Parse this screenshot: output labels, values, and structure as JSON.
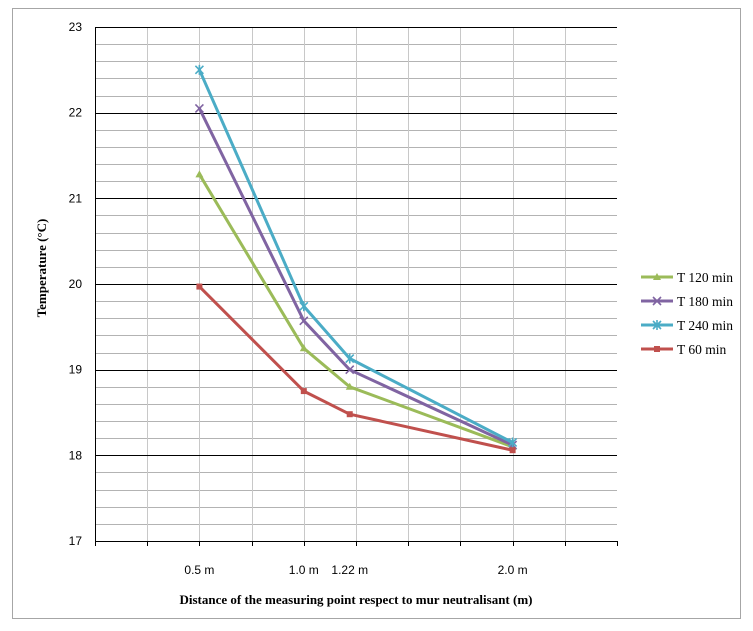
{
  "chart_data": {
    "type": "line",
    "title": "",
    "xlabel": "Distance of the measuring point respect to mur neutralisant (m)",
    "ylabel": "Temperature  (°C)",
    "x": [
      0.5,
      1.0,
      1.22,
      2.0
    ],
    "x_tick_labels": [
      "0.5 m",
      "1.0 m",
      "1.22 m",
      "2.0 m"
    ],
    "xlim": [
      0.0,
      2.5
    ],
    "ylim": [
      17,
      23
    ],
    "y_ticks": [
      17,
      18,
      19,
      20,
      21,
      22,
      23
    ],
    "grid": true,
    "legend_position": "right",
    "series": [
      {
        "name": "T 120 min",
        "color": "#9bbb59",
        "marker": "triangle",
        "values": [
          21.28,
          19.25,
          18.8,
          18.1
        ]
      },
      {
        "name": "T 180 min",
        "color": "#8064a2",
        "marker": "x",
        "values": [
          22.05,
          19.57,
          19.0,
          18.12
        ]
      },
      {
        "name": "T 240 min",
        "color": "#4bacc6",
        "marker": "star",
        "values": [
          22.5,
          19.74,
          19.13,
          18.15
        ]
      },
      {
        "name": "T 60 min",
        "color": "#c0504d",
        "marker": "square",
        "values": [
          19.97,
          18.75,
          18.48,
          18.06
        ]
      }
    ]
  }
}
